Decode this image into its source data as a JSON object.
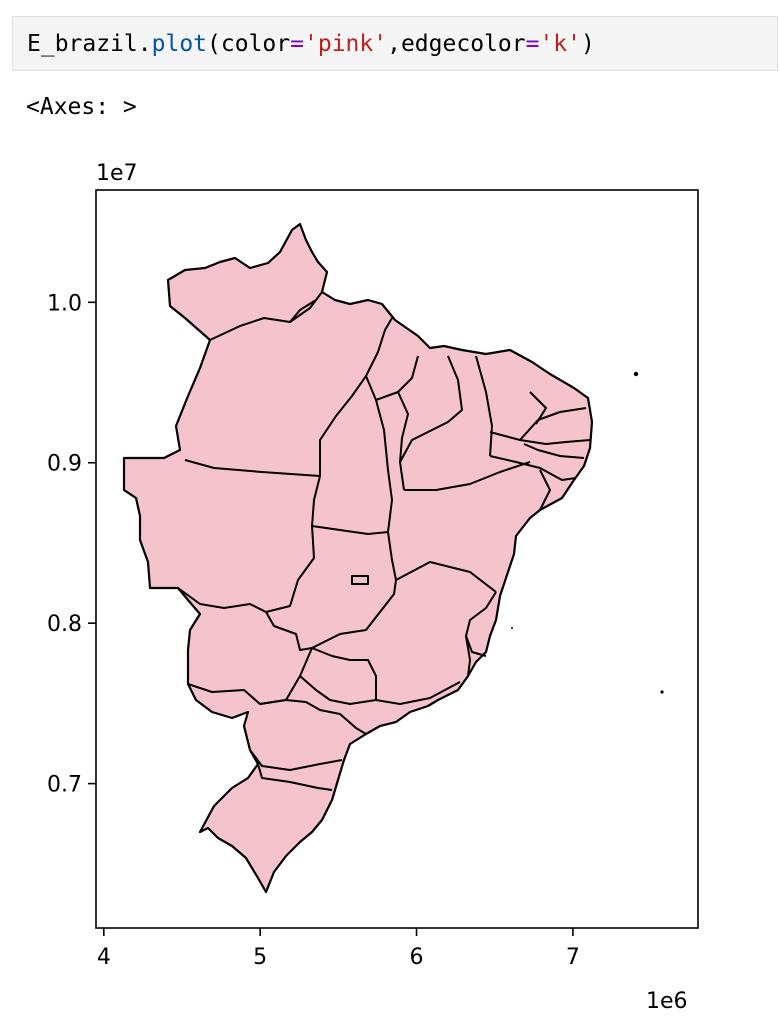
{
  "cell": {
    "code": {
      "object": "E_brazil",
      "dot": ".",
      "method": "plot",
      "open": "(",
      "arg1_name": "color",
      "eq1": "=",
      "arg1_value": "'pink'",
      "comma": ",",
      "arg2_name": "edgecolor",
      "eq2": "=",
      "arg2_value": "'k'",
      "close": ")"
    },
    "output_repr": "<Axes: >"
  },
  "colors": {
    "fill": "#f5c3cb",
    "edge": "#000000"
  },
  "chart_data": {
    "type": "map",
    "x_ticks": [
      "4",
      "5",
      "6",
      "7"
    ],
    "y_ticks": [
      "0.7",
      "0.8",
      "0.9",
      "1.0"
    ],
    "x_offset_label": "1e6",
    "y_offset_label": "1e7",
    "xlim": [
      3.95,
      7.8
    ],
    "ylim": [
      6.1,
      10.7
    ],
    "fill_color": "pink",
    "edge_color": "k"
  }
}
